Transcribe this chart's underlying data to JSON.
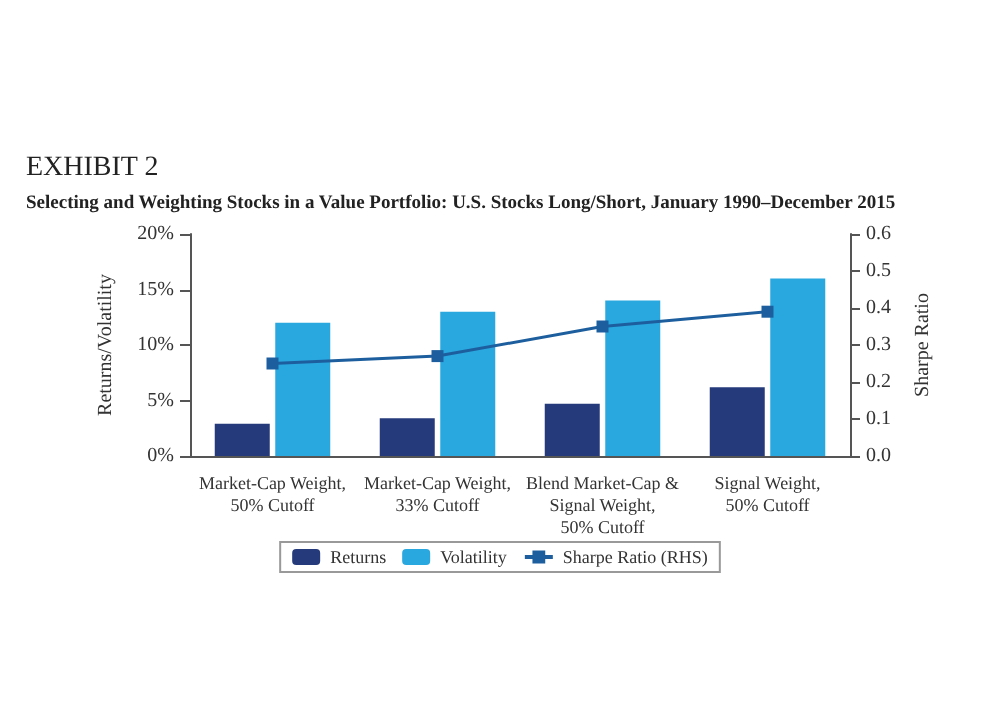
{
  "chart_data": {
    "type": "bar",
    "title": "EXHIBIT 2",
    "subtitle": "Selecting and Weighting Stocks in a Value Portfolio: U.S. Stocks Long/Short, January 1990–December 2015",
    "categories": [
      "Market-Cap Weight,\n50% Cutoff",
      "Market-Cap Weight,\n33% Cutoff",
      "Blend Market-Cap &\nSignal Weight,\n50% Cutoff",
      "Signal Weight,\n50% Cutoff"
    ],
    "series": [
      {
        "name": "Returns",
        "color": "#253a7a",
        "values": [
          2.9,
          3.4,
          4.7,
          6.2
        ]
      },
      {
        "name": "Volatility",
        "color": "#29a8e0",
        "values": [
          12,
          13,
          14,
          16
        ]
      },
      {
        "name": "Sharpe Ratio (RHS)",
        "type": "line",
        "axis": "y2",
        "color": "#1d5f9e",
        "marker": "square",
        "values": [
          0.25,
          0.27,
          0.35,
          0.39
        ]
      }
    ],
    "ylabel": "Returns/Volatility",
    "y2label": "Sharpe Ratio",
    "ylim": [
      0,
      20
    ],
    "yticks": [
      {
        "value": 0,
        "label": "0%"
      },
      {
        "value": 5,
        "label": "5%"
      },
      {
        "value": 10,
        "label": "10%"
      },
      {
        "value": 15,
        "label": "15%"
      },
      {
        "value": 20,
        "label": "20%"
      }
    ],
    "y2lim": [
      0,
      0.6
    ],
    "y2ticks": [
      {
        "value": 0,
        "label": "0.0"
      },
      {
        "value": 0.1,
        "label": "0.1"
      },
      {
        "value": 0.2,
        "label": "0.2"
      },
      {
        "value": 0.3,
        "label": "0.3"
      },
      {
        "value": 0.4,
        "label": "0.4"
      },
      {
        "value": 0.5,
        "label": "0.5"
      },
      {
        "value": 0.6,
        "label": "0.6"
      }
    ],
    "legend": "bottom",
    "grid": false
  }
}
